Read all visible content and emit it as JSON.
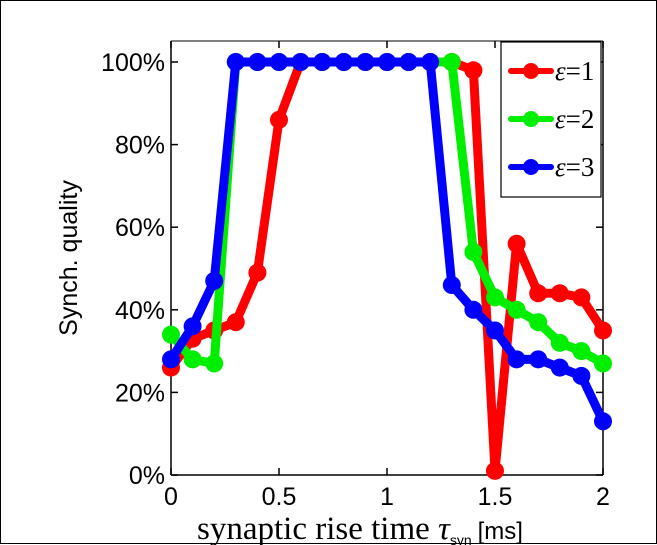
{
  "chart_data": {
    "type": "line",
    "title": "",
    "xlabel": {
      "main": "synaptic rise time",
      "symbol": "τ",
      "subscript": "syn",
      "unit": "[ms]"
    },
    "ylabel": "Synch. quality",
    "xlim": [
      0,
      2
    ],
    "ylim": [
      0,
      100
    ],
    "x_ticks": [
      0,
      0.5,
      1,
      1.5,
      2
    ],
    "x_tick_labels": [
      "0",
      "0.5",
      "1",
      "1.5",
      "2"
    ],
    "y_ticks": [
      0,
      20,
      40,
      60,
      80,
      100
    ],
    "y_tick_labels": [
      "0%",
      "20%",
      "40%",
      "60%",
      "80%",
      "100%"
    ],
    "grid": false,
    "legend_position": "top-right",
    "series": [
      {
        "name": "ε=1",
        "legend_symbol": "ε",
        "legend_value": "=1",
        "color": "#ff0000",
        "x": [
          0,
          0.1,
          0.2,
          0.3,
          0.4,
          0.5,
          0.6,
          0.7,
          0.8,
          0.9,
          1.0,
          1.1,
          1.2,
          1.3,
          1.4,
          1.5,
          1.6,
          1.7,
          1.8,
          1.9,
          2.0
        ],
        "y": [
          26,
          33,
          35,
          37,
          49,
          86,
          100,
          100,
          100,
          100,
          100,
          100,
          100,
          100,
          98,
          1,
          56,
          44,
          44,
          43,
          35
        ]
      },
      {
        "name": "ε=2",
        "legend_symbol": "ε",
        "legend_value": "=2",
        "color": "#00ee00",
        "x": [
          0,
          0.1,
          0.2,
          0.3,
          0.4,
          0.5,
          0.6,
          0.7,
          0.8,
          0.9,
          1.0,
          1.1,
          1.2,
          1.3,
          1.4,
          1.5,
          1.6,
          1.7,
          1.8,
          1.9,
          2.0
        ],
        "y": [
          34,
          28,
          27,
          100,
          100,
          100,
          100,
          100,
          100,
          100,
          100,
          100,
          100,
          100,
          54,
          43,
          40,
          37,
          32,
          30,
          27
        ]
      },
      {
        "name": "ε=3",
        "legend_symbol": "ε",
        "legend_value": "=3",
        "color": "#0000ff",
        "x": [
          0,
          0.1,
          0.2,
          0.3,
          0.4,
          0.5,
          0.6,
          0.7,
          0.8,
          0.9,
          1.0,
          1.1,
          1.2,
          1.3,
          1.4,
          1.5,
          1.6,
          1.7,
          1.8,
          1.9,
          2.0
        ],
        "y": [
          28,
          36,
          47,
          100,
          100,
          100,
          100,
          100,
          100,
          100,
          100,
          100,
          100,
          46,
          40,
          35,
          28,
          28,
          26,
          24,
          13
        ]
      }
    ]
  }
}
